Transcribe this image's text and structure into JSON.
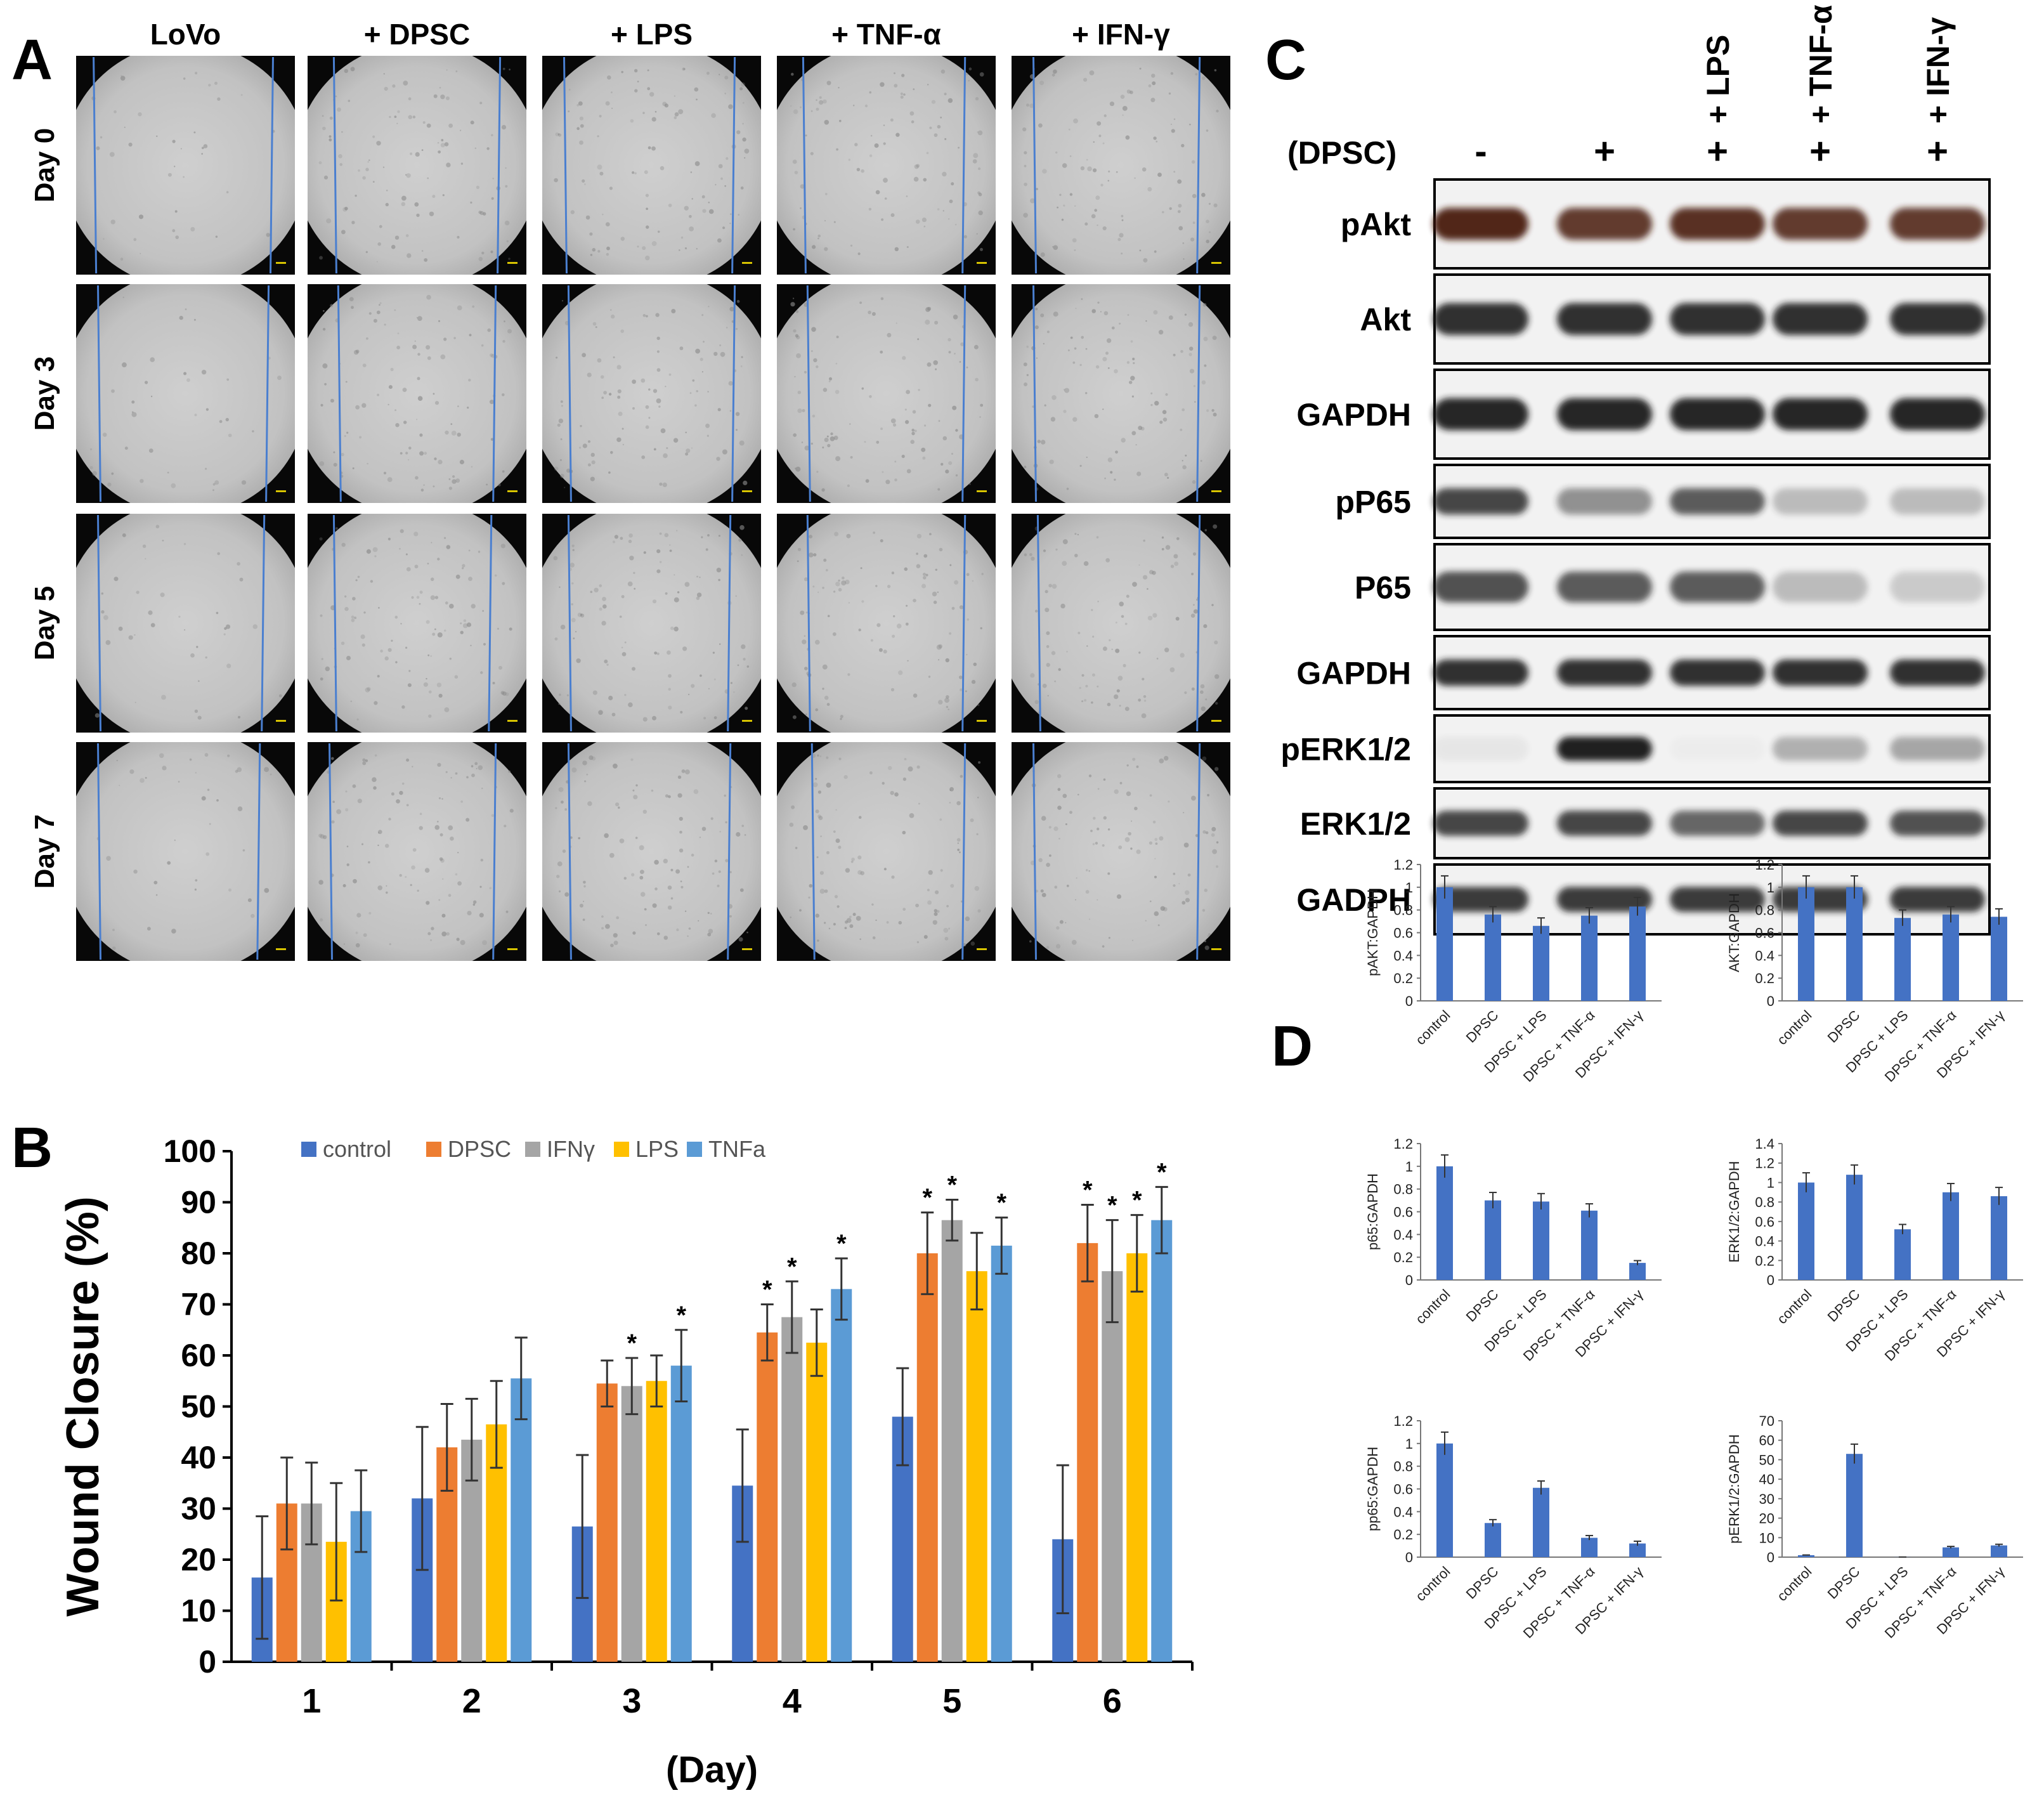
{
  "panels": {
    "A": {
      "letter": "A",
      "columns": [
        "LoVo",
        "+ DPSC",
        "+ LPS",
        "+ TNF-α",
        "+ IFN-γ"
      ],
      "rows": [
        "Day 0",
        "Day 3",
        "Day 5",
        "Day 7"
      ],
      "wound_edges_fraction": [
        [
          [
            0.08,
            0.9
          ],
          [
            0.12,
            0.88
          ],
          [
            0.1,
            0.88
          ],
          [
            0.12,
            0.86
          ],
          [
            0.1,
            0.86
          ]
        ],
        [
          [
            0.1,
            0.88
          ],
          [
            0.14,
            0.86
          ],
          [
            0.12,
            0.88
          ],
          [
            0.14,
            0.86
          ],
          [
            0.1,
            0.86
          ]
        ],
        [
          [
            0.1,
            0.86
          ],
          [
            0.12,
            0.84
          ],
          [
            0.12,
            0.86
          ],
          [
            0.14,
            0.86
          ],
          [
            0.12,
            0.86
          ]
        ],
        [
          [
            0.1,
            0.84
          ],
          [
            0.1,
            0.86
          ],
          [
            0.12,
            0.86
          ],
          [
            0.16,
            0.86
          ],
          [
            0.1,
            0.86
          ]
        ]
      ]
    },
    "B": {
      "letter": "B",
      "chart_data": {
        "type": "bar",
        "categories": [
          "1",
          "2",
          "3",
          "4",
          "5",
          "6"
        ],
        "xlabel": "(Day)",
        "ylabel": "Wound Closure (%)",
        "ylim": [
          0,
          100
        ],
        "yticks": [
          "0",
          "10",
          "20",
          "30",
          "40",
          "50",
          "60",
          "70",
          "80",
          "90",
          "100"
        ],
        "legend_placement": "top",
        "series": [
          {
            "name": "control",
            "color": "#4472C4",
            "values": [
              16.5,
              32,
              26.5,
              34.5,
              48,
              24
            ],
            "errors": [
              12,
              14,
              14,
              11,
              9.5,
              14.5
            ],
            "sig": [
              false,
              false,
              false,
              false,
              false,
              false
            ]
          },
          {
            "name": "DPSC",
            "color": "#ED7D31",
            "values": [
              31,
              42,
              54.5,
              64.5,
              80,
              82
            ],
            "errors": [
              9,
              8.5,
              4.5,
              5.5,
              8,
              7.5
            ],
            "sig": [
              false,
              false,
              false,
              true,
              true,
              true
            ]
          },
          {
            "name": "IFNγ",
            "color": "#A5A5A5",
            "values": [
              31,
              43.5,
              54,
              67.5,
              86.5,
              76.5
            ],
            "errors": [
              8,
              8,
              5.5,
              7,
              4,
              10
            ],
            "sig": [
              false,
              false,
              true,
              true,
              true,
              true
            ]
          },
          {
            "name": "LPS",
            "color": "#FFC000",
            "values": [
              23.5,
              46.5,
              55,
              62.5,
              76.5,
              80
            ],
            "errors": [
              11.5,
              8.5,
              5,
              6.5,
              7.5,
              7.5
            ],
            "sig": [
              false,
              false,
              false,
              false,
              false,
              true
            ]
          },
          {
            "name": "TNFa",
            "color": "#5B9BD5",
            "values": [
              29.5,
              55.5,
              58,
              73,
              81.5,
              86.5
            ],
            "errors": [
              8,
              8,
              7,
              6,
              5.5,
              6.5
            ],
            "sig": [
              false,
              false,
              true,
              true,
              true,
              true
            ]
          }
        ],
        "sig_mark": "*"
      }
    },
    "C": {
      "letter": "C",
      "header_label": "(DPSC)",
      "treatments": [
        "",
        "",
        "+ LPS",
        "+ TNF-α",
        "+ IFN-γ"
      ],
      "signs": [
        "-",
        "+",
        "+",
        "+",
        "+"
      ],
      "blots": [
        {
          "label": "pAkt",
          "intensity": [
            0.95,
            0.85,
            0.9,
            0.85,
            0.85
          ],
          "color": "#4a1a10"
        },
        {
          "label": "Akt",
          "intensity": [
            0.9,
            0.9,
            0.9,
            0.9,
            0.9
          ],
          "color": "#1a1a1a"
        },
        {
          "label": "GAPDH",
          "intensity": [
            0.95,
            0.95,
            0.95,
            0.95,
            0.95
          ],
          "color": "#1a1a1a"
        },
        {
          "label": "pP65",
          "intensity": [
            0.8,
            0.45,
            0.7,
            0.25,
            0.25
          ],
          "color": "#1a1a1a"
        },
        {
          "label": "P65",
          "intensity": [
            0.75,
            0.7,
            0.7,
            0.25,
            0.18
          ],
          "color": "#1a1a1a"
        },
        {
          "label": "GAPDH",
          "intensity": [
            0.9,
            0.9,
            0.9,
            0.9,
            0.9
          ],
          "color": "#1a1a1a"
        },
        {
          "label": "pERK1/2",
          "intensity": [
            0.05,
            0.98,
            0.02,
            0.3,
            0.35
          ],
          "color": "#1a1a1a"
        },
        {
          "label": "ERK1/2",
          "intensity": [
            0.8,
            0.8,
            0.65,
            0.8,
            0.75
          ],
          "color": "#1a1a1a"
        },
        {
          "label": "GADPH",
          "intensity": [
            0.85,
            0.85,
            0.85,
            0.85,
            0.85
          ],
          "color": "#1a1a1a"
        }
      ]
    },
    "D": {
      "letter": "D",
      "chart_data": [
        {
          "type": "bar",
          "ylabel": "pAKT:GAPDH",
          "categories": [
            "control",
            "DPSC",
            "DPSC + LPS",
            "DPSC + TNF-α",
            "DPSC + IFN-γ"
          ],
          "values": [
            1.0,
            0.76,
            0.66,
            0.75,
            0.83
          ],
          "errors": [
            0.1,
            0.07,
            0.07,
            0.07,
            0.08
          ],
          "ylim": [
            0,
            1.2
          ],
          "yticks": [
            "0",
            "0.2",
            "0.4",
            "0.6",
            "0.8",
            "1",
            "1.2"
          ]
        },
        {
          "type": "bar",
          "ylabel": "AKT:GAPDH",
          "categories": [
            "control",
            "DPSC",
            "DPSC + LPS",
            "DPSC + TNF-α",
            "DPSC + IFN-γ"
          ],
          "values": [
            1.0,
            1.0,
            0.73,
            0.76,
            0.74
          ],
          "errors": [
            0.1,
            0.1,
            0.07,
            0.07,
            0.07
          ],
          "ylim": [
            0,
            1.2
          ],
          "yticks": [
            "0",
            "0.2",
            "0.4",
            "0.6",
            "0.8",
            "1",
            "1.2"
          ]
        },
        {
          "type": "bar",
          "ylabel": "p65:GAPDH",
          "categories": [
            "control",
            "DPSC",
            "DPSC + LPS",
            "DPSC + TNF-α",
            "DPSC + IFN-γ"
          ],
          "values": [
            1.0,
            0.7,
            0.69,
            0.61,
            0.15
          ],
          "errors": [
            0.1,
            0.07,
            0.07,
            0.06,
            0.02
          ],
          "ylim": [
            0,
            1.2
          ],
          "yticks": [
            "0",
            "0.2",
            "0.4",
            "0.6",
            "0.8",
            "1",
            "1.2"
          ]
        },
        {
          "type": "bar",
          "ylabel": "ERK1/2:GAPDH",
          "categories": [
            "control",
            "DPSC",
            "DPSC + LPS",
            "DPSC + TNF-α",
            "DPSC + IFN-γ"
          ],
          "values": [
            1.0,
            1.08,
            0.52,
            0.9,
            0.86
          ],
          "errors": [
            0.1,
            0.1,
            0.05,
            0.09,
            0.09
          ],
          "ylim": [
            0,
            1.4
          ],
          "yticks": [
            "0",
            "0.2",
            "0.4",
            "0.6",
            "0.8",
            "1",
            "1.2",
            "1.4"
          ]
        },
        {
          "type": "bar",
          "ylabel": "pp65:GAPDH",
          "categories": [
            "control",
            "DPSC",
            "DPSC + LPS",
            "DPSC + TNF-α",
            "DPSC + IFN-γ"
          ],
          "values": [
            1.0,
            0.3,
            0.61,
            0.17,
            0.12
          ],
          "errors": [
            0.1,
            0.03,
            0.06,
            0.02,
            0.02
          ],
          "ylim": [
            0,
            1.2
          ],
          "yticks": [
            "0",
            "0.2",
            "0.4",
            "0.6",
            "0.8",
            "1",
            "1.2"
          ]
        },
        {
          "type": "bar",
          "ylabel": "pERK1/2:GAPDH",
          "categories": [
            "control",
            "DPSC",
            "DPSC + LPS",
            "DPSC + TNF-α",
            "DPSC + IFN-γ"
          ],
          "values": [
            1.0,
            53,
            0.05,
            5,
            6
          ],
          "errors": [
            0.1,
            5,
            0.01,
            0.5,
            0.6
          ],
          "ylim": [
            0,
            70
          ],
          "yticks": [
            "0",
            "10",
            "20",
            "30",
            "40",
            "50",
            "60",
            "70"
          ]
        }
      ]
    }
  }
}
